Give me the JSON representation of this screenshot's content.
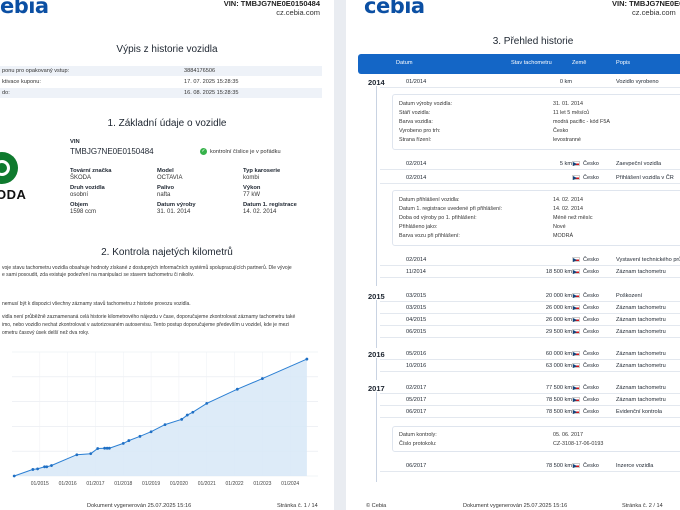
{
  "header": {
    "logo": "cebia",
    "vin": "VIN: TMBJG7NE0E0150484",
    "web": "cz.cebia.com"
  },
  "left": {
    "title": "Výpis z historie vozidla",
    "coupon_rows": [
      {
        "label": "ponu pro opakovaný vstup:",
        "value": "3884176506"
      },
      {
        "label": "ktivace kuponu:",
        "value": "17. 07. 2025 15:28:35"
      },
      {
        "label": "do:",
        "value": "16. 08. 2025 15:28:35"
      }
    ],
    "section1": "1. Základní údaje o vozidle",
    "logo_text": "ODA",
    "vin_label": "VIN",
    "vin_value": "TMBJG7NE0E0150484",
    "vin_check": "kontrolní číslice je v pořádku",
    "fields": [
      {
        "label": "Tovární značka",
        "value": "ŠKODA"
      },
      {
        "label": "Model",
        "value": "OCTAVIA"
      },
      {
        "label": "Typ karoserie",
        "value": "kombi"
      },
      {
        "label": "Druh vozidla",
        "value": "osobní"
      },
      {
        "label": "Palivo",
        "value": "nafta"
      },
      {
        "label": "Výkon",
        "value": "77 kW"
      },
      {
        "label": "Objem",
        "value": "1598 ccm"
      },
      {
        "label": "Datum výroby",
        "value": "31. 01. 2014"
      },
      {
        "label": "Datum 1. registrace",
        "value": "14. 02. 2014"
      }
    ],
    "section2": "2. Kontrola najetých kilometrů",
    "para1": [
      "voje stavu tachometru vozidla obsahuje hodnoty získané z dostupných informačních systémů spolupracujících partnerů. Dle vývoje",
      "e sami posoudit, zda existuje podezření na manipulaci se stavem tachometru či nikoliv."
    ],
    "para2": "nemusí být k dispozici všechny záznamy stavů tachometru z historie provozu vozidla.",
    "para3": [
      "vidla není průběžně zaznamenaná celá historie kilometrového nájezdu v čase, doporučujeme zkontrolovat záznamy tachometru také",
      "imo, nebo vozidlo nechat zkontrolovat v autorizovaném autoservisu. Tento postup doporučujeme především u vozidel, kde je mezi",
      "ometru časový úsek delší než dva roky."
    ],
    "footer_doc": "Dokument vygenerován 25.07.2025 15:16",
    "footer_page": "Stránka č. 1 / 14"
  },
  "chart_data": {
    "type": "line",
    "title": "",
    "x_ticks": [
      "01/2015",
      "01/2016",
      "01/2017",
      "01/2018",
      "01/2019",
      "01/2020",
      "01/2021",
      "01/2022",
      "01/2023",
      "01/2024"
    ],
    "y_ticks": [
      "",
      "",
      "",
      "",
      "",
      ""
    ],
    "y_range": [
      0,
      350000
    ],
    "x_range": [
      2014.0,
      2025.0
    ],
    "series": [
      {
        "x": [
          2014.08,
          2014.75,
          2014.92,
          2015.17,
          2015.25,
          2015.42,
          2016.33,
          2016.83,
          2017.08,
          2017.33,
          2017.42,
          2017.5,
          2018.0,
          2018.2,
          2018.6,
          2019.0,
          2019.5,
          2020.1,
          2020.3,
          2020.5,
          2021.0,
          2022.1,
          2023.0,
          2024.6
        ],
        "y": [
          0,
          18500,
          20000,
          26000,
          26000,
          29500,
          60000,
          63000,
          77500,
          78500,
          78500,
          78500,
          92000,
          100000,
          112000,
          125000,
          145000,
          160000,
          172000,
          180000,
          205000,
          245000,
          275000,
          330000
        ]
      }
    ],
    "grid": true
  },
  "right": {
    "section3": "3. Přehled historie",
    "columns": [
      "Datum",
      "Stav tachometru",
      "Země",
      "Popis"
    ],
    "entries": [
      {
        "year": "2014",
        "date": "01/2014",
        "km": "0 km",
        "country": "",
        "desc": "Vozidlo vyrobeno"
      },
      {
        "date": "02/2014",
        "km": "5 km",
        "country": "Česko",
        "desc": "Zaevpeční vozidla"
      },
      {
        "date": "02/2014",
        "km": "",
        "country": "Česko",
        "desc": "Přihlášení vozidla v ČR"
      },
      {
        "date": "02/2014",
        "km": "",
        "country": "Česko",
        "desc": "Vystavení technického prů"
      },
      {
        "date": "11/2014",
        "km": "18 500 km",
        "country": "Česko",
        "desc": "Záznam tachometru"
      },
      {
        "year": "2015",
        "date": "03/2015",
        "km": "20 000 km",
        "country": "Česko",
        "desc": "Poškození"
      },
      {
        "date": "03/2015",
        "km": "26 000 km",
        "country": "Česko",
        "desc": "Záznam tachometru"
      },
      {
        "date": "04/2015",
        "km": "26 000 km",
        "country": "Česko",
        "desc": "Záznam tachometru"
      },
      {
        "date": "06/2015",
        "km": "29 500 km",
        "country": "Česko",
        "desc": "Záznam tachometru"
      },
      {
        "year": "2016",
        "date": "05/2016",
        "km": "60 000 km",
        "country": "Česko",
        "desc": "Záznam tachometru"
      },
      {
        "date": "10/2016",
        "km": "63 000 km",
        "country": "Česko",
        "desc": "Záznam tachometru"
      },
      {
        "year": "2017",
        "date": "02/2017",
        "km": "77 500 km",
        "country": "Česko",
        "desc": "Záznam tachometru"
      },
      {
        "date": "05/2017",
        "km": "78 500 km",
        "country": "Česko",
        "desc": "Záznam tachometru"
      },
      {
        "date": "06/2017",
        "km": "78 500 km",
        "country": "Česko",
        "desc": "Evidenční kontrola"
      },
      {
        "date": "06/2017",
        "km": "78 500 km",
        "country": "Česko",
        "desc": "Inzerce vozidla"
      }
    ],
    "box1": [
      {
        "label": "Datum výroby vozidla:",
        "value": "31. 01. 2014"
      },
      {
        "label": "Stáří vozidla:",
        "value": "11 let 5 měsíců"
      },
      {
        "label": "Barva vozidla:",
        "value": "modrá pacific - kód F5A"
      },
      {
        "label": "Vyrobeno pro trh:",
        "value": "Česko"
      },
      {
        "label": "Strana řízení:",
        "value": "levostranné"
      }
    ],
    "box2": [
      {
        "label": "Datum přihlášení vozidla:",
        "value": "14. 02. 2014"
      },
      {
        "label": "Datum 1. registrace uvedené při přihlášení:",
        "value": "14. 02. 2014"
      },
      {
        "label": "Doba od výroby po 1. přihlášení:",
        "value": "Méně než měsíc"
      },
      {
        "label": "Přihlášeno jako:",
        "value": "Nové"
      },
      {
        "label": "Barva vozu při přihlášení:",
        "value": "MODRÁ"
      }
    ],
    "box3": [
      {
        "label": "Datum kontroly:",
        "value": "05. 06. 2017"
      },
      {
        "label": "Číslo protokolu:",
        "value": "CZ-3108-17-06-0193"
      }
    ],
    "footer_cebia": "© Cebia",
    "footer_doc": "Dokument vygenerován 25.07.2025 15:16",
    "footer_page": "Stránka č. 2 / 14"
  }
}
